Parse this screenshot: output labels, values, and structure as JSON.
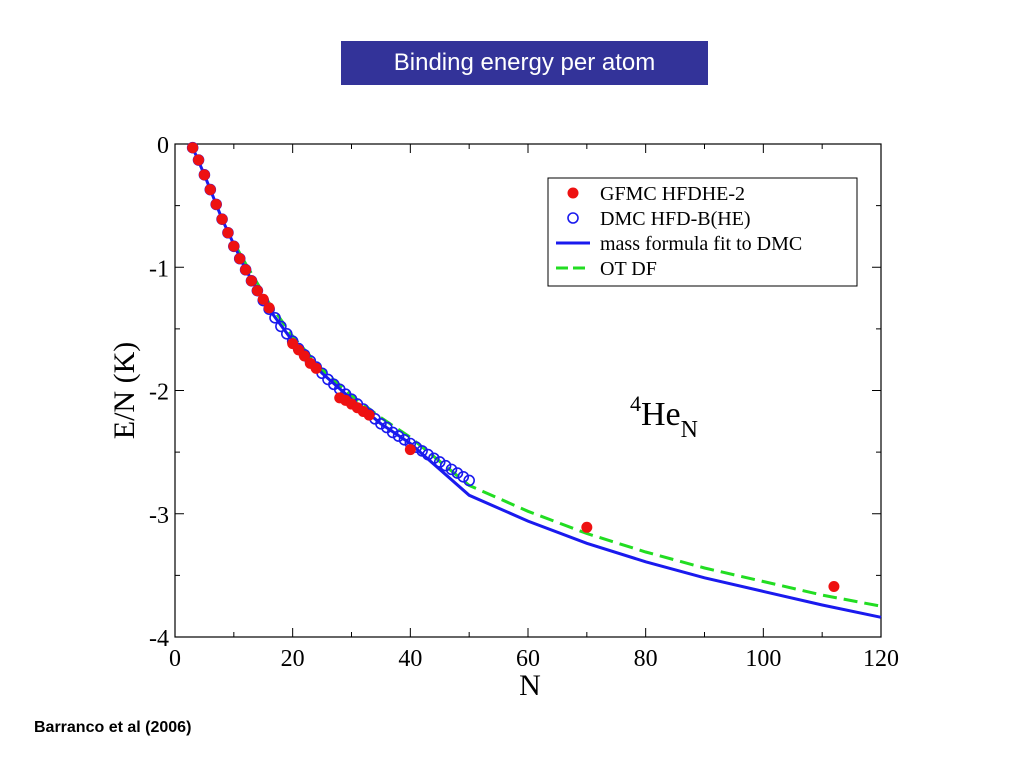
{
  "slide": {
    "title": "Binding energy per atom",
    "citation": "Barranco et al (2006)"
  },
  "chart_data": {
    "type": "scatter",
    "xlabel": "N",
    "ylabel": "E/N (K)",
    "xlim": [
      0,
      120
    ],
    "ylim": [
      -4,
      0
    ],
    "xticks": [
      "0",
      "20",
      "40",
      "60",
      "80",
      "100",
      "120"
    ],
    "yticks": [
      "0",
      "-1",
      "-2",
      "-3",
      "-4"
    ],
    "annotation": {
      "sup": "4",
      "base": "He",
      "sub": "N"
    },
    "legend_position": "top-right",
    "series": [
      {
        "name": "GFMC HFDHE-2",
        "kind": "points-filled",
        "color": "#ee1111",
        "x": [
          3,
          4,
          5,
          6,
          7,
          8,
          9,
          10,
          11,
          12,
          13,
          14,
          15,
          16,
          20,
          21,
          22,
          23,
          24,
          28,
          29,
          30,
          31,
          32,
          33,
          40,
          70,
          112
        ],
        "y": [
          -0.03,
          -0.13,
          -0.25,
          -0.37,
          -0.49,
          -0.61,
          -0.72,
          -0.83,
          -0.93,
          -1.02,
          -1.11,
          -1.19,
          -1.26,
          -1.33,
          -1.62,
          -1.67,
          -1.72,
          -1.78,
          -1.82,
          -2.06,
          -2.08,
          -2.11,
          -2.14,
          -2.17,
          -2.2,
          -2.48,
          -3.11,
          -3.59
        ]
      },
      {
        "name": "DMC HFD-B(HE)",
        "kind": "points-open",
        "color": "#1a1aee",
        "x": [
          3,
          4,
          5,
          6,
          7,
          8,
          9,
          10,
          11,
          12,
          13,
          14,
          15,
          16,
          17,
          18,
          19,
          20,
          21,
          22,
          23,
          24,
          25,
          26,
          27,
          28,
          29,
          30,
          31,
          32,
          33,
          34,
          35,
          36,
          37,
          38,
          39,
          40,
          41,
          42,
          43,
          44,
          45,
          46,
          47,
          48,
          49,
          50
        ],
        "y": [
          -0.03,
          -0.13,
          -0.25,
          -0.37,
          -0.49,
          -0.61,
          -0.72,
          -0.83,
          -0.93,
          -1.02,
          -1.11,
          -1.19,
          -1.27,
          -1.34,
          -1.41,
          -1.48,
          -1.54,
          -1.6,
          -1.66,
          -1.71,
          -1.76,
          -1.81,
          -1.86,
          -1.91,
          -1.95,
          -1.99,
          -2.03,
          -2.07,
          -2.11,
          -2.15,
          -2.19,
          -2.23,
          -2.27,
          -2.3,
          -2.34,
          -2.37,
          -2.4,
          -2.43,
          -2.46,
          -2.49,
          -2.52,
          -2.55,
          -2.58,
          -2.61,
          -2.64,
          -2.67,
          -2.7,
          -2.73
        ]
      },
      {
        "name": "mass formula fit to DMC",
        "kind": "line-solid",
        "color": "#1a1aee",
        "x": [
          3,
          5,
          8,
          12,
          16,
          20,
          25,
          30,
          35,
          40,
          50,
          60,
          70,
          80,
          90,
          100,
          110,
          120
        ],
        "y": [
          -0.03,
          -0.25,
          -0.61,
          -1.02,
          -1.34,
          -1.6,
          -1.86,
          -2.07,
          -2.27,
          -2.43,
          -2.85,
          -3.06,
          -3.24,
          -3.39,
          -3.52,
          -3.63,
          -3.74,
          -3.84
        ]
      },
      {
        "name": "OT DF",
        "kind": "line-dashed",
        "color": "#22dd22",
        "x": [
          10,
          12,
          16,
          20,
          25,
          30,
          35,
          40,
          50,
          60,
          70,
          80,
          90,
          100,
          110,
          120
        ],
        "y": [
          -0.8,
          -0.97,
          -1.29,
          -1.56,
          -1.83,
          -2.04,
          -2.22,
          -2.38,
          -2.77,
          -2.98,
          -3.16,
          -3.31,
          -3.44,
          -3.55,
          -3.66,
          -3.75
        ]
      }
    ]
  }
}
